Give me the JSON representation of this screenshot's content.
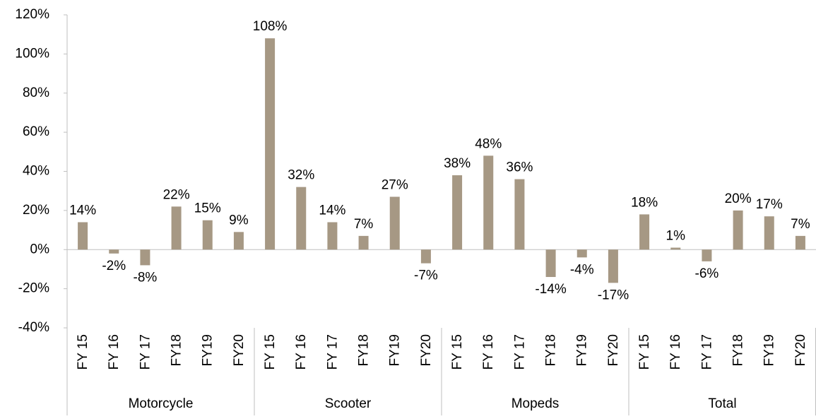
{
  "chart_data": {
    "type": "bar",
    "categories": [
      "FY 15",
      "FY 16",
      "FY 17",
      "FY18",
      "FY19",
      "FY20",
      "FY 15",
      "FY 16",
      "FY 17",
      "FY18",
      "FY19",
      "FY20",
      "FY 15",
      "FY 16",
      "FY 17",
      "FY18",
      "FY19",
      "FY20",
      "FY 15",
      "FY 16",
      "FY 17",
      "FY18",
      "FY19",
      "FY20"
    ],
    "groups": [
      "Motorcycle",
      "Scooter",
      "Mopeds",
      "Total"
    ],
    "values": [
      14,
      -2,
      -8,
      22,
      15,
      9,
      108,
      32,
      14,
      7,
      27,
      -7,
      38,
      48,
      36,
      -14,
      -4,
      -17,
      18,
      1,
      -6,
      20,
      17,
      7
    ],
    "value_labels": [
      "14%",
      "-2%",
      "-8%",
      "22%",
      "15%",
      "9%",
      "108%",
      "32%",
      "14%",
      "7%",
      "27%",
      "-7%",
      "38%",
      "48%",
      "36%",
      "-14%",
      "-4%",
      "-17%",
      "18%",
      "1%",
      "-6%",
      "20%",
      "17%",
      "7%"
    ],
    "color": "#a69884",
    "ylim": [
      -40,
      120
    ],
    "yticks": [
      {
        "value": -40,
        "label": "-40%"
      },
      {
        "value": -20,
        "label": "-20%"
      },
      {
        "value": 0,
        "label": "0%"
      },
      {
        "value": 20,
        "label": "20%"
      },
      {
        "value": 40,
        "label": "40%"
      },
      {
        "value": 60,
        "label": "60%"
      },
      {
        "value": 80,
        "label": "80%"
      },
      {
        "value": 100,
        "label": "100%"
      },
      {
        "value": 120,
        "label": "120%"
      }
    ],
    "grid": false
  }
}
